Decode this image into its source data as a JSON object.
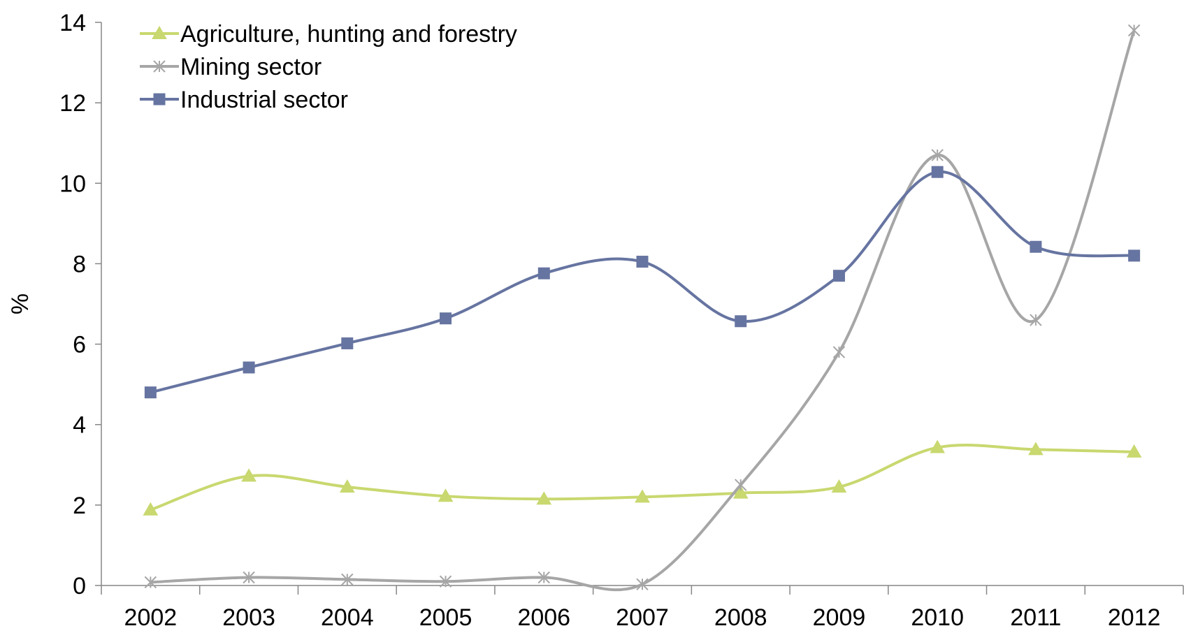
{
  "chart_data": {
    "type": "line",
    "title": "",
    "xlabel": "",
    "ylabel": "%",
    "x": [
      "2002",
      "2003",
      "2004",
      "2005",
      "2006",
      "2007",
      "2008",
      "2009",
      "2010",
      "2011",
      "2012"
    ],
    "ylim": [
      0,
      14
    ],
    "yticks": [
      "0",
      "2",
      "4",
      "6",
      "8",
      "10",
      "12",
      "14"
    ],
    "grid": false,
    "legend_position": "top-left",
    "smooth": true,
    "series": [
      {
        "name": "Agriculture, hunting and forestry",
        "color": "#c9d86f",
        "marker": "triangle",
        "values": [
          1.88,
          2.72,
          2.45,
          2.22,
          2.15,
          2.2,
          2.3,
          2.45,
          3.43,
          3.38,
          3.32
        ]
      },
      {
        "name": "Mining sector",
        "color": "#a6a6a6",
        "marker": "asterisk",
        "values": [
          0.08,
          0.2,
          0.15,
          0.1,
          0.2,
          0.03,
          2.5,
          5.8,
          10.7,
          6.6,
          13.8
        ]
      },
      {
        "name": "Industrial sector",
        "color": "#6674a1",
        "marker": "square",
        "values": [
          4.8,
          5.42,
          6.02,
          6.64,
          7.76,
          8.05,
          6.57,
          7.7,
          10.28,
          8.42,
          8.2
        ]
      }
    ]
  }
}
